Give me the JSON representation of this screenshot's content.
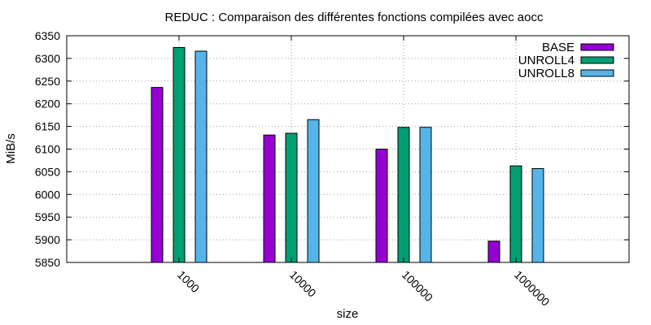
{
  "chart_data": {
    "type": "bar",
    "title": "REDUC : Comparaison des différentes fonctions compilées avec aocc",
    "xlabel": "size",
    "ylabel": "MiB/s",
    "categories": [
      "1000",
      "10000",
      "100000",
      "1000000"
    ],
    "series": [
      {
        "name": "BASE",
        "color": "#9400d3",
        "values": [
          6236,
          6131,
          6100,
          5897
        ]
      },
      {
        "name": "UNROLL4",
        "color": "#009e73",
        "values": [
          6324,
          6135,
          6148,
          6063
        ]
      },
      {
        "name": "UNROLL8",
        "color": "#56b4e9",
        "values": [
          6316,
          6165,
          6148,
          6057
        ]
      }
    ],
    "ylim": [
      5850,
      6350
    ],
    "yticks": [
      5850,
      5900,
      5950,
      6000,
      6050,
      6100,
      6150,
      6200,
      6250,
      6300,
      6350
    ],
    "grid": true,
    "legend_position": "top-right"
  }
}
